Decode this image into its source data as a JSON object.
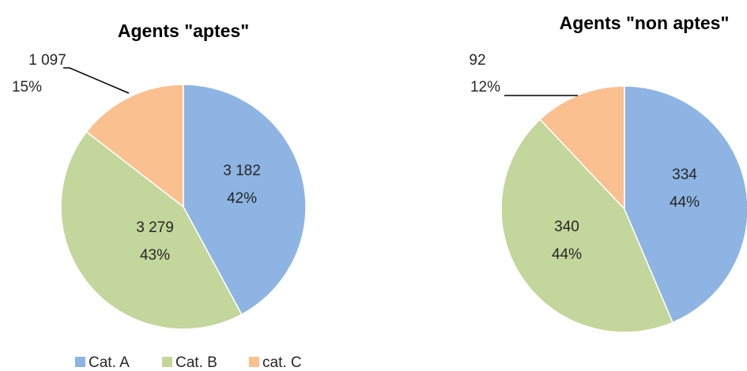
{
  "chart_data": [
    {
      "type": "pie",
      "title": "Agents \"aptes\"",
      "categories": [
        "Cat. A",
        "Cat. B",
        "cat. C"
      ],
      "values": [
        3182,
        3279,
        1097
      ],
      "value_labels": [
        "3 182",
        "3 279",
        "1 097"
      ],
      "percent_labels": [
        "42%",
        "43%",
        "15%"
      ]
    },
    {
      "type": "pie",
      "title": "Agents \"non aptes\"",
      "categories": [
        "Cat. A",
        "Cat. B",
        "cat. C"
      ],
      "values": [
        334,
        340,
        92
      ],
      "value_labels": [
        "334",
        "340",
        "92"
      ],
      "percent_labels": [
        "44%",
        "44%",
        "12%"
      ]
    }
  ],
  "legend": {
    "position": "bottom-left",
    "items": [
      {
        "label": "Cat. A",
        "color": "#8EB4E3"
      },
      {
        "label": "Cat. B",
        "color": "#C3D69B"
      },
      {
        "label": "cat. C",
        "color": "#FAC090"
      }
    ]
  },
  "colors": [
    "#8EB4E3",
    "#C3D69B",
    "#FAC090"
  ]
}
